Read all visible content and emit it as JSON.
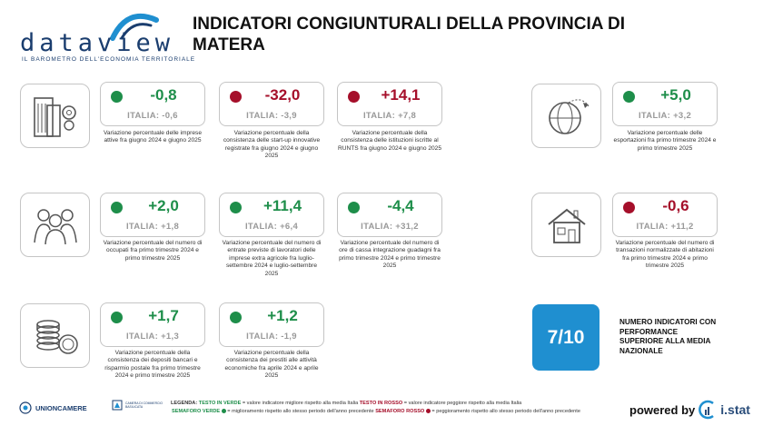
{
  "logo": {
    "wordmark": "dataview",
    "tagline": "IL BAROMETRO DELL'ECONOMIA TERRITORIALE"
  },
  "title": "INDICATORI CONGIUNTURALI DELLA PROVINCIA DI MATERA",
  "colors": {
    "green": "#1e8e4a",
    "red": "#a50f2a",
    "accent_blue": "#1f8fd0"
  },
  "indicators": [
    {
      "value": "-0,8",
      "italia": "ITALIA: -0,6",
      "status": "green",
      "description": "Variazione percentuale delle imprese attive fra giugno 2024 e giugno 2025"
    },
    {
      "value": "-32,0",
      "italia": "ITALIA: -3,9",
      "status": "red",
      "description": "Variazione percentuale della consistenza delle start-up innovative registrate fra giugno 2024 e giugno 2025"
    },
    {
      "value": "+14,1",
      "italia": "ITALIA: +7,8",
      "status": "red",
      "description": "Variazione percentuale della consistenza delle istituzioni iscritte al RUNTS fra giugno 2024 e giugno 2025"
    },
    {
      "value": "+5,0",
      "italia": "ITALIA: +3,2",
      "status": "green",
      "description": "Variazione percentuale delle esportazioni fra primo trimestre 2024 e primo trimestre 2025"
    },
    {
      "value": "+2,0",
      "italia": "ITALIA: +1,8",
      "status": "green",
      "description": "Variazione percentuale del numero di occupati fra primo trimestre 2024 e primo trimestre 2025"
    },
    {
      "value": "+11,4",
      "italia": "ITALIA: +6,4",
      "status": "green",
      "description": "Variazione percentuale del numero di entrate previste di lavoratori delle imprese extra agricole fra luglio-settembre 2024 e luglio-settembre 2025"
    },
    {
      "value": "-4,4",
      "italia": "ITALIA: +31,2",
      "status": "green",
      "description": "Variazione percentuale del numero di ore di cassa integrazione guadagni fra primo trimestre 2024 e primo trimestre 2025"
    },
    {
      "value": "-0,6",
      "italia": "ITALIA: +11,2",
      "status": "red",
      "description": "Variazione percentuale del numero di transazioni normalizzate di abitazioni fra primo trimestre 2024 e primo trimestre 2025"
    },
    {
      "value": "+1,7",
      "italia": "ITALIA: +1,3",
      "status": "green",
      "description": "Variazione percentuale della consistenza dei depositi bancari e risparmio postale fra primo trimestre 2024 e primo trimestre 2025"
    },
    {
      "value": "+1,2",
      "italia": "ITALIA: -1,9",
      "status": "green",
      "description": "Variazione percentuale della consistenza dei prestiti alle attività economiche fra aprile 2024 e aprile 2025"
    }
  ],
  "category_icons": [
    "buildings-gear-icon",
    "globe-plane-icon",
    "people-icon",
    "house-icon",
    "coins-icon"
  ],
  "score": {
    "value": "7/10",
    "label": "NUMERO INDICATORI CON PERFORMANCE SUPERIORE ALLA MEDIA NAZIONALE"
  },
  "footer": {
    "unioncamere": "UNIONCAMERE",
    "chamber_text": "CAMERA DI COMMERCIO BASILICATA",
    "legend_label": "LEGENDA:",
    "legend_green_text": "TESTO IN VERDE",
    "legend_green_desc": " = valore indicatore migliore rispetto alla media Italia ",
    "legend_red_text": "TESTO IN ROSSO",
    "legend_red_desc": " = valore indicatore peggiore rispetto alla media Italia",
    "legend_green_dot": "SEMAFORO VERDE",
    "legend_green_dot_desc": " = miglioramento rispetto allo stesso periodo dell'anno precedente ",
    "legend_red_dot": "SEMAFORO ROSSO",
    "legend_red_dot_desc": " = peggioramento rispetto allo stesso periodo dell'anno precedente",
    "powered_by": "powered by",
    "brand": "i.stat"
  }
}
